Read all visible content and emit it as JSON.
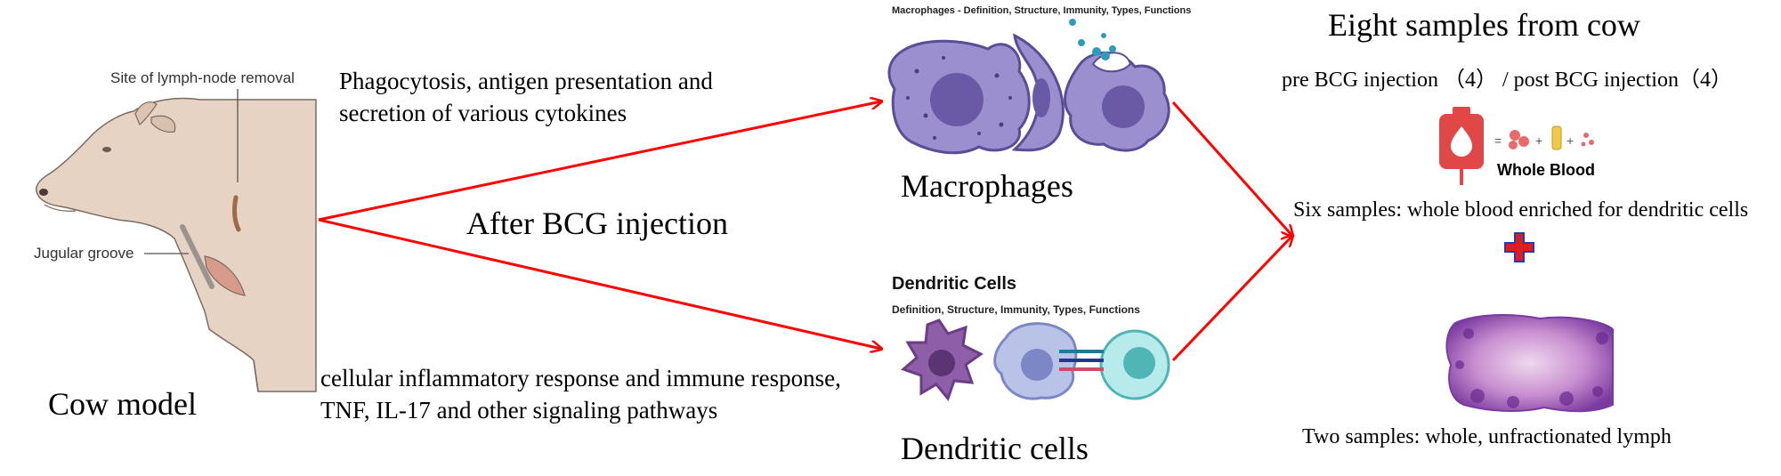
{
  "cow": {
    "lymph_label": "Site of lymph-node removal",
    "jugular_label": "Jugular groove",
    "model_label": "Cow model"
  },
  "upper_path": {
    "description_line1": "Phagocytosis, antigen presentation and",
    "description_line2": "secretion of various cytokines",
    "image_title": "Macrophages - Definition, Structure, Immunity, Types, Functions",
    "caption": "Macrophages"
  },
  "middle_label": "After BCG injection",
  "lower_path": {
    "description_line1": "cellular inflammatory response and immune response,",
    "description_line2": "TNF, IL-17 and other signaling pathways",
    "image_title": "Dendritic Cells",
    "image_subtitle": "Definition, Structure, Immunity, Types, Functions",
    "caption": "Dendritic cells"
  },
  "samples": {
    "title": "Eight samples from cow",
    "split": "pre BCG injection （4） /  post BCG injection（4）",
    "whole_blood_label": "Whole Blood",
    "six_samples": "Six samples: whole blood enriched for dendritic cells",
    "two_samples": "Two samples: whole, unfractionated lymph"
  },
  "colors": {
    "arrow": "#ff0000",
    "cell_purple": "#9b8fd0",
    "nucleus_purple": "#6a5aa6",
    "plus_red": "#e11b22",
    "plus_blue": "#1f3fae",
    "skin": "#e6d3c4"
  }
}
